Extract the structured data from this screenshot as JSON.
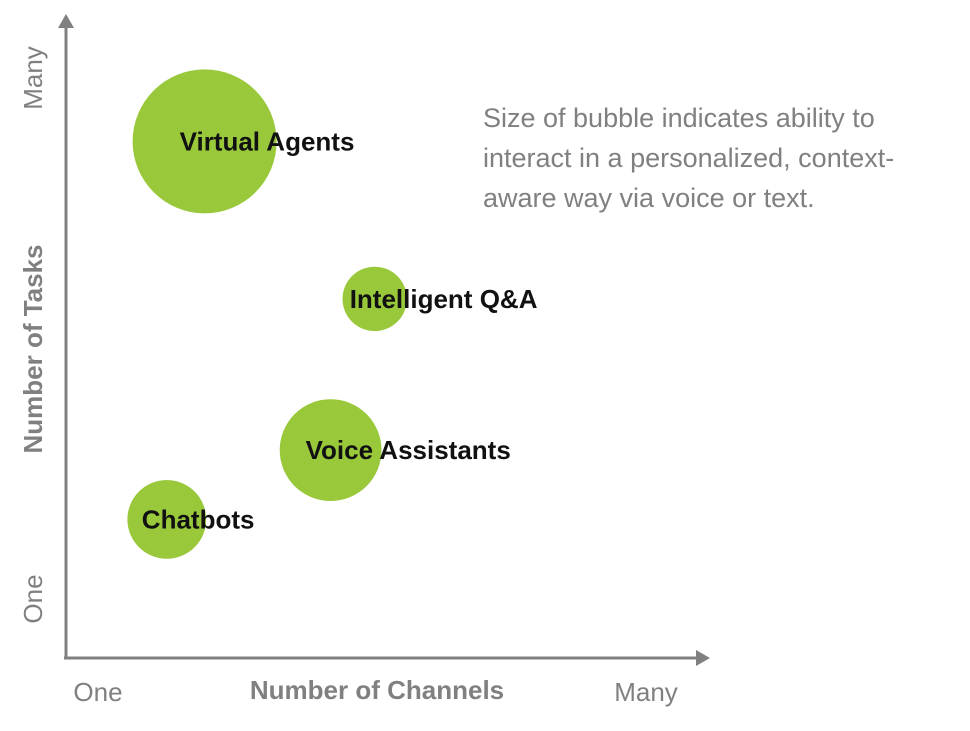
{
  "chart_data": {
    "type": "bubble",
    "title": "",
    "xlabel": "Number of Channels",
    "ylabel": "Number of Tasks",
    "x_ticks": [
      "One",
      "Many"
    ],
    "y_ticks": [
      "One",
      "Many"
    ],
    "xlim": [
      0,
      1
    ],
    "ylim": [
      0,
      1
    ],
    "points": [
      {
        "label": "Virtual Agents",
        "x": 0.22,
        "y": 0.82,
        "size": 1.0
      },
      {
        "label": "Intelligent Q&A",
        "x": 0.49,
        "y": 0.57,
        "size": 0.2
      },
      {
        "label": "Voice Assistants",
        "x": 0.42,
        "y": 0.33,
        "size": 0.5
      },
      {
        "label": "Chatbots",
        "x": 0.16,
        "y": 0.22,
        "size": 0.3
      }
    ],
    "bubble_color": "#99c93b",
    "note": "Size of bubble indicates ability to interact in a personalized, context-aware way via voice or text."
  }
}
